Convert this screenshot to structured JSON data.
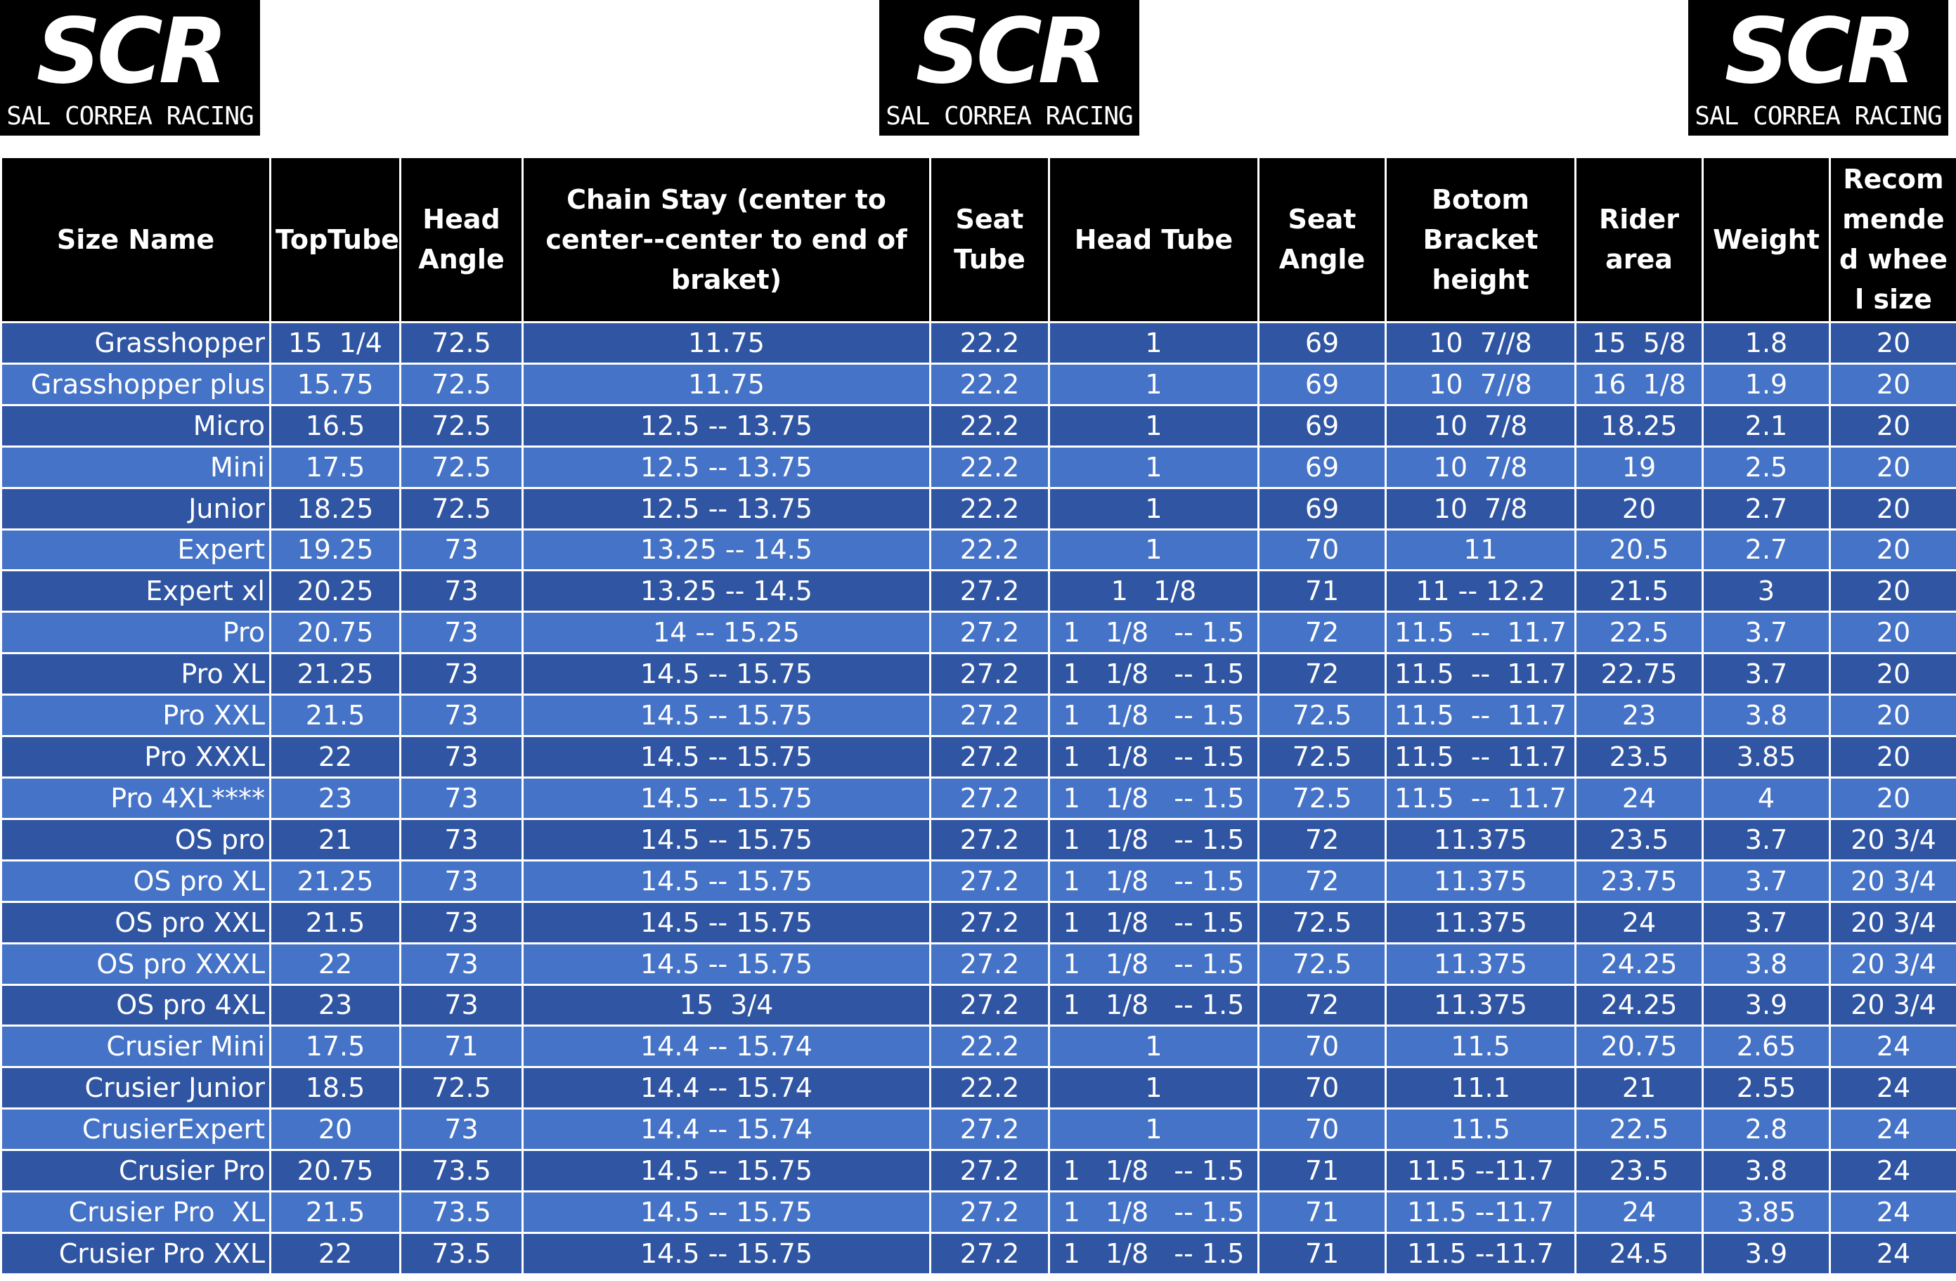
{
  "logo": {
    "mark": "SCR",
    "name": "SAL CORREA RACING"
  },
  "table": {
    "header": [
      "Size Name",
      "TopTube",
      "Head Angle",
      "Chain Stay (center to center--center to end of braket)",
      "Seat Tube",
      "Head Tube",
      "Seat Angle",
      "Botom Bracket height",
      "Rider area",
      "Weight",
      "Recommended wheel size"
    ],
    "rows": [
      [
        "Grasshopper",
        "15  1/4",
        "72.5",
        "11.75",
        "22.2",
        "1",
        "69",
        "10  7//8",
        "15  5/8",
        "1.8",
        "20"
      ],
      [
        "Grasshopper plus",
        "15.75",
        "72.5",
        "11.75",
        "22.2",
        "1",
        "69",
        "10  7//8",
        "16  1/8",
        "1.9",
        "20"
      ],
      [
        "Micro",
        "16.5",
        "72.5",
        "12.5 -- 13.75",
        "22.2",
        "1",
        "69",
        "10  7/8",
        "18.25",
        "2.1",
        "20"
      ],
      [
        "Mini",
        "17.5",
        "72.5",
        "12.5 -- 13.75",
        "22.2",
        "1",
        "69",
        "10  7/8",
        "19",
        "2.5",
        "20"
      ],
      [
        "Junior",
        "18.25",
        "72.5",
        "12.5 -- 13.75",
        "22.2",
        "1",
        "69",
        "10  7/8",
        "20",
        "2.7",
        "20"
      ],
      [
        "Expert",
        "19.25",
        "73",
        "13.25 -- 14.5",
        "22.2",
        "1",
        "70",
        "11",
        "20.5",
        "2.7",
        "20"
      ],
      [
        "Expert xl",
        "20.25",
        "73",
        "13.25 -- 14.5",
        "27.2",
        "1   1/8",
        "71",
        "11 -- 12.2",
        "21.5",
        "3",
        "20"
      ],
      [
        "Pro",
        "20.75",
        "73",
        "14 -- 15.25",
        "27.2",
        "1   1/8   -- 1.5",
        "72",
        "11.5  --  11.7",
        "22.5",
        "3.7",
        "20"
      ],
      [
        "Pro XL",
        "21.25",
        "73",
        "14.5 -- 15.75",
        "27.2",
        "1   1/8   -- 1.5",
        "72",
        "11.5  --  11.7",
        "22.75",
        "3.7",
        "20"
      ],
      [
        "Pro XXL",
        "21.5",
        "73",
        "14.5 -- 15.75",
        "27.2",
        "1   1/8   -- 1.5",
        "72.5",
        "11.5  --  11.7",
        "23",
        "3.8",
        "20"
      ],
      [
        "Pro XXXL",
        "22",
        "73",
        "14.5 -- 15.75",
        "27.2",
        "1   1/8   -- 1.5",
        "72.5",
        "11.5  --  11.7",
        "23.5",
        "3.85",
        "20"
      ],
      [
        "Pro 4XL****",
        "23",
        "73",
        "14.5 -- 15.75",
        "27.2",
        "1   1/8   -- 1.5",
        "72.5",
        "11.5  --  11.7",
        "24",
        "4",
        "20"
      ],
      [
        "OS pro",
        "21",
        "73",
        "14.5 -- 15.75",
        "27.2",
        "1   1/8   -- 1.5",
        "72",
        "11.375",
        "23.5",
        "3.7",
        "20 3/4"
      ],
      [
        "OS pro XL",
        "21.25",
        "73",
        "14.5 -- 15.75",
        "27.2",
        "1   1/8   -- 1.5",
        "72",
        "11.375",
        "23.75",
        "3.7",
        "20 3/4"
      ],
      [
        "OS pro XXL",
        "21.5",
        "73",
        "14.5 -- 15.75",
        "27.2",
        "1   1/8   -- 1.5",
        "72.5",
        "11.375",
        "24",
        "3.7",
        "20 3/4"
      ],
      [
        "OS pro XXXL",
        "22",
        "73",
        "14.5 -- 15.75",
        "27.2",
        "1   1/8   -- 1.5",
        "72.5",
        "11.375",
        "24.25",
        "3.8",
        "20 3/4"
      ],
      [
        "OS pro 4XL",
        "23",
        "73",
        "15  3/4",
        "27.2",
        "1   1/8   -- 1.5",
        "72",
        "11.375",
        "24.25",
        "3.9",
        "20 3/4"
      ],
      [
        "Crusier Mini",
        "17.5",
        "71",
        "14.4 -- 15.74",
        "22.2",
        "1",
        "70",
        "11.5",
        "20.75",
        "2.65",
        "24"
      ],
      [
        "Crusier Junior",
        "18.5",
        "72.5",
        "14.4 -- 15.74",
        "22.2",
        "1",
        "70",
        "11.1",
        "21",
        "2.55",
        "24"
      ],
      [
        "CrusierExpert",
        "20",
        "73",
        "14.4 -- 15.74",
        "27.2",
        "1",
        "70",
        "11.5",
        "22.5",
        "2.8",
        "24"
      ],
      [
        "Crusier Pro",
        "20.75",
        "73.5",
        "14.5 -- 15.75",
        "27.2",
        "1   1/8   -- 1.5",
        "71",
        "11.5 --11.7",
        "23.5",
        "3.8",
        "24"
      ],
      [
        "Crusier Pro  XL",
        "21.5",
        "73.5",
        "14.5 -- 15.75",
        "27.2",
        "1   1/8   -- 1.5",
        "71",
        "11.5 --11.7",
        "24",
        "3.85",
        "24"
      ],
      [
        "Crusier Pro XXL",
        "22",
        "73.5",
        "14.5 -- 15.75",
        "27.2",
        "1   1/8   -- 1.5",
        "71",
        "11.5 --11.7",
        "24.5",
        "3.9",
        "24"
      ]
    ]
  }
}
